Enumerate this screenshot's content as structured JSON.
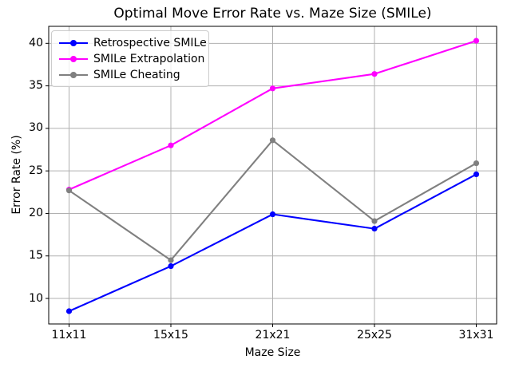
{
  "chart_data": {
    "type": "line",
    "title": "Optimal Move Error Rate vs. Maze Size (SMILe)",
    "xlabel": "Maze Size",
    "ylabel": "Error Rate (%)",
    "categories": [
      "11x11",
      "15x15",
      "21x21",
      "25x25",
      "31x31"
    ],
    "series": [
      {
        "name": "Retrospective SMILe",
        "color": "#0000ff",
        "values": [
          8.5,
          13.8,
          19.9,
          18.2,
          24.6
        ]
      },
      {
        "name": "SMILe Extrapolation",
        "color": "#ff00ff",
        "values": [
          22.8,
          28.0,
          34.7,
          36.4,
          40.3
        ]
      },
      {
        "name": "SMILe Cheating",
        "color": "#808080",
        "values": [
          22.7,
          14.5,
          28.6,
          19.1,
          25.9
        ]
      }
    ],
    "yticks": [
      10,
      15,
      20,
      25,
      30,
      35,
      40
    ],
    "ylim": [
      7.0,
      42.0
    ],
    "x_margin": 0.2,
    "grid": true,
    "legend_position": "upper left",
    "grid_color": "#b0b0b0",
    "spine_color": "#000000",
    "text_color": "#000000",
    "legend_border_color": "#cccccc"
  }
}
